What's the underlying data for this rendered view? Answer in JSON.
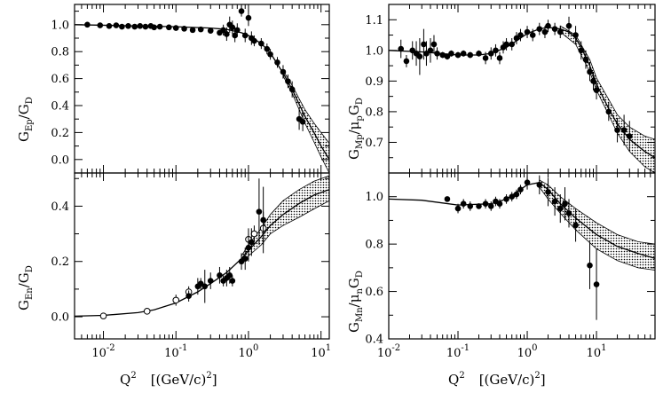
{
  "chart_data": [
    {
      "id": "gep",
      "type": "scatter",
      "ylabel": "G_Ep/G_D",
      "xscale": "log",
      "xlim": [
        0.004,
        13
      ],
      "ylim": [
        -0.1,
        1.15
      ],
      "xticks": [],
      "yticks": [
        "0.0",
        "0.2",
        "0.4",
        "0.6",
        "0.8",
        "1.0"
      ],
      "series": [
        {
          "name": "data",
          "filled": true,
          "points": [
            [
              0.006,
              1.0,
              0
            ],
            [
              0.009,
              0.995,
              0
            ],
            [
              0.012,
              0.99,
              0
            ],
            [
              0.015,
              0.995,
              0
            ],
            [
              0.018,
              0.985,
              0
            ],
            [
              0.022,
              0.99,
              0
            ],
            [
              0.027,
              0.985,
              0
            ],
            [
              0.032,
              0.99,
              0
            ],
            [
              0.038,
              0.985,
              0
            ],
            [
              0.045,
              0.99,
              0
            ],
            [
              0.05,
              0.98,
              0
            ],
            [
              0.06,
              0.985,
              0
            ],
            [
              0.08,
              0.98,
              0
            ],
            [
              0.1,
              0.975,
              0
            ],
            [
              0.13,
              0.97,
              0
            ],
            [
              0.17,
              0.96,
              0
            ],
            [
              0.22,
              0.965,
              0
            ],
            [
              0.3,
              0.955,
              0
            ],
            [
              0.4,
              0.94,
              0
            ],
            [
              0.45,
              0.96,
              0.04
            ],
            [
              0.5,
              0.93,
              0.05
            ],
            [
              0.55,
              1.0,
              0.06
            ],
            [
              0.6,
              0.98,
              0.05
            ],
            [
              0.65,
              0.92,
              0.05
            ],
            [
              0.7,
              0.96,
              0.05
            ],
            [
              0.8,
              1.1,
              0.04
            ],
            [
              0.9,
              0.92,
              0.05
            ],
            [
              1.0,
              1.05,
              0.06
            ],
            [
              1.1,
              0.9,
              0.05
            ],
            [
              1.2,
              0.88,
              0.04
            ],
            [
              1.5,
              0.86,
              0.04
            ],
            [
              1.8,
              0.82,
              0.04
            ],
            [
              2.0,
              0.78,
              0.04
            ],
            [
              2.5,
              0.72,
              0.04
            ],
            [
              3.0,
              0.65,
              0.05
            ],
            [
              3.5,
              0.58,
              0.05
            ],
            [
              4.0,
              0.52,
              0.06
            ],
            [
              5.0,
              0.3,
              0.08
            ],
            [
              5.6,
              0.28,
              0.07
            ]
          ]
        }
      ],
      "fit": [
        [
          0.004,
          1.0
        ],
        [
          0.1,
          0.985
        ],
        [
          0.3,
          0.975
        ],
        [
          0.5,
          0.965
        ],
        [
          0.8,
          0.94
        ],
        [
          1.0,
          0.92
        ],
        [
          1.5,
          0.86
        ],
        [
          2.0,
          0.79
        ],
        [
          3.0,
          0.64
        ],
        [
          4.0,
          0.52
        ],
        [
          5.0,
          0.41
        ],
        [
          6.0,
          0.32
        ],
        [
          8.0,
          0.2
        ],
        [
          10.0,
          0.1
        ],
        [
          13.0,
          0.0
        ]
      ],
      "band": [
        [
          3.0,
          0.66,
          0.62
        ],
        [
          4.0,
          0.55,
          0.49
        ],
        [
          5.0,
          0.45,
          0.37
        ],
        [
          6.0,
          0.37,
          0.27
        ],
        [
          8.0,
          0.27,
          0.13
        ],
        [
          10.0,
          0.2,
          0.02
        ],
        [
          13.0,
          0.12,
          -0.1
        ]
      ]
    },
    {
      "id": "gmp",
      "type": "scatter",
      "ylabel": "G_Mp/μ_p G_D",
      "xscale": "log",
      "xlim": [
        0.01,
        70
      ],
      "ylim": [
        0.6,
        1.15
      ],
      "xticks": [],
      "yticks": [
        "0.7",
        "0.8",
        "0.9",
        "1.0",
        "1.1"
      ],
      "series": [
        {
          "name": "data",
          "filled": true,
          "points": [
            [
              0.015,
              1.005,
              0.03
            ],
            [
              0.018,
              0.965,
              0.02
            ],
            [
              0.022,
              1.0,
              0.03
            ],
            [
              0.025,
              0.99,
              0.04
            ],
            [
              0.028,
              0.98,
              0.06
            ],
            [
              0.032,
              1.02,
              0.05
            ],
            [
              0.035,
              0.99,
              0.04
            ],
            [
              0.04,
              1.0,
              0.04
            ],
            [
              0.045,
              1.02,
              0.03
            ],
            [
              0.05,
              0.99,
              0.02
            ],
            [
              0.06,
              0.985,
              0.01
            ],
            [
              0.07,
              0.98,
              0.01
            ],
            [
              0.08,
              0.99,
              0.01
            ],
            [
              0.1,
              0.985,
              0.01
            ],
            [
              0.12,
              0.99,
              0.01
            ],
            [
              0.15,
              0.985,
              0.01
            ],
            [
              0.2,
              0.99,
              0.01
            ],
            [
              0.25,
              0.975,
              0.02
            ],
            [
              0.3,
              0.99,
              0.02
            ],
            [
              0.35,
              1.0,
              0.02
            ],
            [
              0.4,
              0.975,
              0.02
            ],
            [
              0.45,
              1.01,
              0.02
            ],
            [
              0.5,
              1.02,
              0.02
            ],
            [
              0.6,
              1.02,
              0.02
            ],
            [
              0.7,
              1.04,
              0.02
            ],
            [
              0.8,
              1.05,
              0.02
            ],
            [
              1.0,
              1.06,
              0.02
            ],
            [
              1.2,
              1.05,
              0.02
            ],
            [
              1.5,
              1.07,
              0.02
            ],
            [
              1.8,
              1.06,
              0.02
            ],
            [
              2.0,
              1.08,
              0.02
            ],
            [
              2.5,
              1.07,
              0.02
            ],
            [
              3.0,
              1.06,
              0.02
            ],
            [
              4.0,
              1.08,
              0.03
            ],
            [
              5.0,
              1.05,
              0.03
            ],
            [
              6.0,
              1.0,
              0.03
            ],
            [
              7.0,
              0.97,
              0.03
            ],
            [
              8.0,
              0.93,
              0.03
            ],
            [
              9.0,
              0.9,
              0.03
            ],
            [
              10.0,
              0.87,
              0.03
            ],
            [
              15.0,
              0.8,
              0.03
            ],
            [
              20.0,
              0.74,
              0.04
            ],
            [
              25.0,
              0.74,
              0.05
            ],
            [
              30.0,
              0.72,
              0.05
            ]
          ]
        }
      ],
      "fit": [
        [
          0.01,
          1.0
        ],
        [
          0.03,
          0.995
        ],
        [
          0.1,
          0.985
        ],
        [
          0.2,
          0.985
        ],
        [
          0.3,
          0.99
        ],
        [
          0.5,
          1.01
        ],
        [
          0.8,
          1.04
        ],
        [
          1.0,
          1.055
        ],
        [
          1.5,
          1.07
        ],
        [
          2.0,
          1.075
        ],
        [
          3.0,
          1.07
        ],
        [
          4.0,
          1.06
        ],
        [
          5.0,
          1.04
        ],
        [
          6.0,
          1.01
        ],
        [
          8.0,
          0.95
        ],
        [
          10.0,
          0.89
        ],
        [
          15.0,
          0.81
        ],
        [
          20.0,
          0.76
        ],
        [
          30.0,
          0.71
        ],
        [
          50.0,
          0.67
        ],
        [
          70.0,
          0.65
        ]
      ],
      "band": [
        [
          3.0,
          1.08,
          1.06
        ],
        [
          5.0,
          1.05,
          1.02
        ],
        [
          8.0,
          0.97,
          0.93
        ],
        [
          10.0,
          0.91,
          0.87
        ],
        [
          15.0,
          0.84,
          0.79
        ],
        [
          20.0,
          0.79,
          0.73
        ],
        [
          30.0,
          0.75,
          0.67
        ],
        [
          50.0,
          0.72,
          0.62
        ],
        [
          70.0,
          0.71,
          0.6
        ]
      ]
    },
    {
      "id": "gen",
      "type": "scatter",
      "ylabel": "G_En/G_D",
      "xscale": "log",
      "xlim": [
        0.004,
        13
      ],
      "ylim": [
        -0.08,
        0.52
      ],
      "xticks": [
        "10^-2",
        "10^-1",
        "10^0",
        "10^1"
      ],
      "yticks": [
        "0.0",
        "0.2",
        "0.4"
      ],
      "xlabel": "Q^2  [(GeV/c)^2]",
      "series": [
        {
          "name": "open",
          "filled": false,
          "points": [
            [
              0.01,
              0.003,
              0
            ],
            [
              0.04,
              0.02,
              0
            ],
            [
              0.1,
              0.06,
              0.02
            ],
            [
              0.15,
              0.09,
              0.02
            ],
            [
              1.0,
              0.28,
              0.04
            ],
            [
              1.2,
              0.3,
              0.03
            ],
            [
              1.6,
              0.32,
              0.06
            ]
          ]
        },
        {
          "name": "filled",
          "filled": true,
          "points": [
            [
              0.15,
              0.075,
              0.02
            ],
            [
              0.2,
              0.11,
              0.03
            ],
            [
              0.22,
              0.12,
              0.02
            ],
            [
              0.25,
              0.11,
              0.06
            ],
            [
              0.3,
              0.13,
              0.03
            ],
            [
              0.4,
              0.15,
              0.03
            ],
            [
              0.45,
              0.13,
              0.02
            ],
            [
              0.5,
              0.14,
              0.03
            ],
            [
              0.55,
              0.15,
              0.03
            ],
            [
              0.6,
              0.13,
              0.02
            ],
            [
              0.8,
              0.2,
              0.03
            ],
            [
              0.9,
              0.21,
              0.04
            ],
            [
              1.0,
              0.25,
              0.05
            ],
            [
              1.1,
              0.27,
              0.05
            ],
            [
              1.4,
              0.38,
              0.12
            ],
            [
              1.6,
              0.35,
              0.12
            ]
          ]
        }
      ],
      "fit": [
        [
          0.004,
          0.002
        ],
        [
          0.01,
          0.005
        ],
        [
          0.03,
          0.015
        ],
        [
          0.05,
          0.025
        ],
        [
          0.1,
          0.05
        ],
        [
          0.2,
          0.09
        ],
        [
          0.3,
          0.12
        ],
        [
          0.5,
          0.16
        ],
        [
          0.8,
          0.21
        ],
        [
          1.0,
          0.24
        ],
        [
          1.5,
          0.29
        ],
        [
          2.0,
          0.33
        ],
        [
          3.0,
          0.37
        ],
        [
          5.0,
          0.41
        ],
        [
          8.0,
          0.44
        ],
        [
          13.0,
          0.46
        ]
      ],
      "band": [
        [
          0.8,
          0.22,
          0.2
        ],
        [
          1.0,
          0.26,
          0.22
        ],
        [
          1.5,
          0.32,
          0.26
        ],
        [
          2.0,
          0.37,
          0.3
        ],
        [
          3.0,
          0.42,
          0.33
        ],
        [
          5.0,
          0.46,
          0.36
        ],
        [
          8.0,
          0.49,
          0.39
        ],
        [
          13.0,
          0.51,
          0.42
        ]
      ]
    },
    {
      "id": "gmn",
      "type": "scatter",
      "ylabel": "G_Mn/μ_n G_D",
      "xscale": "log",
      "xlim": [
        0.01,
        70
      ],
      "ylim": [
        0.4,
        1.1
      ],
      "xticks": [
        "10^-2",
        "10^-1",
        "10^0",
        "10^1"
      ],
      "yticks": [
        "0.4",
        "0.6",
        "0.8",
        "1.0"
      ],
      "xlabel": "Q^2  [(GeV/c)^2]",
      "series": [
        {
          "name": "data",
          "filled": true,
          "points": [
            [
              0.07,
              0.99,
              0.01
            ],
            [
              0.1,
              0.95,
              0.02
            ],
            [
              0.12,
              0.97,
              0.02
            ],
            [
              0.15,
              0.96,
              0.02
            ],
            [
              0.2,
              0.96,
              0.01
            ],
            [
              0.25,
              0.97,
              0.02
            ],
            [
              0.3,
              0.96,
              0.02
            ],
            [
              0.35,
              0.98,
              0.02
            ],
            [
              0.4,
              0.97,
              0.02
            ],
            [
              0.5,
              0.99,
              0.02
            ],
            [
              0.6,
              1.0,
              0.02
            ],
            [
              0.7,
              1.01,
              0.02
            ],
            [
              0.8,
              1.03,
              0.02
            ],
            [
              1.0,
              1.06,
              0.03
            ],
            [
              1.5,
              1.05,
              0.04
            ],
            [
              2.0,
              1.02,
              0.06
            ],
            [
              2.5,
              0.98,
              0.06
            ],
            [
              3.0,
              0.95,
              0.06
            ],
            [
              3.5,
              0.97,
              0.07
            ],
            [
              4.0,
              0.93,
              0.06
            ],
            [
              5.0,
              0.88,
              0.07
            ],
            [
              8.0,
              0.71,
              0.1
            ],
            [
              10.0,
              0.63,
              0.15
            ]
          ]
        }
      ],
      "fit": [
        [
          0.01,
          0.99
        ],
        [
          0.03,
          0.985
        ],
        [
          0.1,
          0.965
        ],
        [
          0.3,
          0.97
        ],
        [
          0.5,
          0.99
        ],
        [
          1.0,
          1.05
        ],
        [
          1.5,
          1.06
        ],
        [
          2.0,
          1.03
        ],
        [
          3.0,
          0.97
        ],
        [
          5.0,
          0.91
        ],
        [
          10.0,
          0.84
        ],
        [
          20.0,
          0.79
        ],
        [
          40.0,
          0.76
        ],
        [
          70.0,
          0.74
        ]
      ],
      "band": [
        [
          1.5,
          1.07,
          1.04
        ],
        [
          2.0,
          1.05,
          0.99
        ],
        [
          3.0,
          1.0,
          0.93
        ],
        [
          5.0,
          0.95,
          0.86
        ],
        [
          10.0,
          0.89,
          0.78
        ],
        [
          20.0,
          0.84,
          0.73
        ],
        [
          40.0,
          0.81,
          0.7
        ],
        [
          70.0,
          0.8,
          0.69
        ]
      ]
    }
  ],
  "labels": {
    "gep_main": "G",
    "gep_sub": "Ep",
    "gep_rest": "/G",
    "gep_sub2": "D",
    "gmp_main": "G",
    "gmp_sub": "Mp",
    "gmp_mid": "/μ",
    "gmp_sub2": "p",
    "gmp_g": "G",
    "gmp_sub3": "D",
    "gen_main": "G",
    "gen_sub": "En",
    "gen_rest": "/G",
    "gen_sub2": "D",
    "gmn_main": "G",
    "gmn_sub": "Mn",
    "gmn_mid": "/μ",
    "gmn_sub2": "n",
    "gmn_g": "G",
    "gmn_sub3": "D",
    "q": "Q",
    "q_exp": "2",
    "units_pre": "[(GeV/c)",
    "units_exp": "2",
    "units_post": "]"
  }
}
